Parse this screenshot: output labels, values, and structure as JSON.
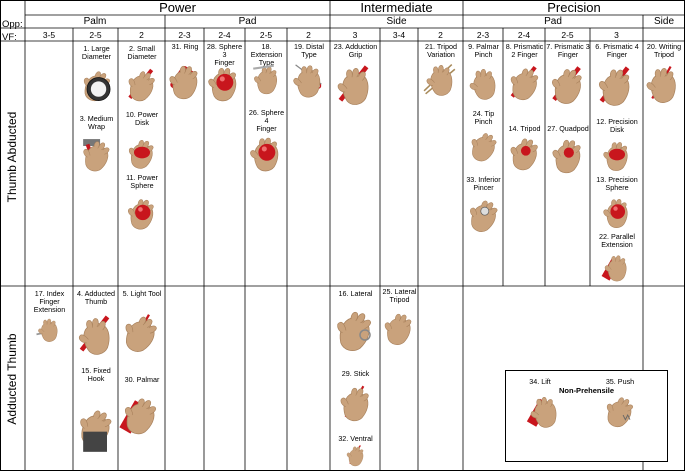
{
  "header": {
    "opp_label": "Opp:",
    "vf_label": "VF:",
    "groups": [
      "Power",
      "Intermediate",
      "Precision"
    ],
    "subgroups": [
      "Palm",
      "Pad",
      "Side",
      "Pad",
      "Side"
    ],
    "vf_values": [
      "3-5",
      "2-5",
      "2",
      "2-3",
      "2-4",
      "2-5",
      "2",
      "3",
      "3-4",
      "2",
      "2-3",
      "2-4",
      "2-5",
      "3"
    ]
  },
  "rows": {
    "thumb_abducted": "Thumb Abducted",
    "adducted_thumb": "Adducted Thumb"
  },
  "grasps": [
    {
      "label": "1. Large\nDiameter",
      "object": "cylinder-large"
    },
    {
      "label": "2. Small\nDiameter",
      "object": "rod"
    },
    {
      "label": "3. Medium\nWrap",
      "object": "hammer"
    },
    {
      "label": "10. Power\nDisk",
      "object": "disk"
    },
    {
      "label": "11. Power\nSphere",
      "object": "sphere"
    },
    {
      "label": "31. Ring",
      "object": "cylinder-red"
    },
    {
      "label": "28. Sphere 3\nFinger",
      "object": "sphere"
    },
    {
      "label": "18.\nExtension\nType",
      "object": "plate"
    },
    {
      "label": "26. Sphere 4\nFinger",
      "object": "sphere"
    },
    {
      "label": "19. Distal\nType",
      "object": "scissors"
    },
    {
      "label": "23. Adduction\nGrip",
      "object": "rod"
    },
    {
      "label": "21. Tripod\nVariation",
      "object": "chopsticks"
    },
    {
      "label": "9. Palmar\nPinch",
      "object": "none"
    },
    {
      "label": "24. Tip\nPinch",
      "object": "none"
    },
    {
      "label": "33. Inferior\nPincer",
      "object": "ball-small"
    },
    {
      "label": "8. Prismatic\n2 Finger",
      "object": "rod"
    },
    {
      "label": "14. Tripod",
      "object": "sphere-small"
    },
    {
      "label": "7. Prismatic 3\nFinger",
      "object": "rod"
    },
    {
      "label": "27. Quadpod",
      "object": "sphere-small"
    },
    {
      "label": "6. Prismatic 4\nFinger",
      "object": "rod"
    },
    {
      "label": "12. Precision\nDisk",
      "object": "disk"
    },
    {
      "label": "13. Precision\nSphere",
      "object": "sphere"
    },
    {
      "label": "22. Parallel\nExtension",
      "object": "book"
    },
    {
      "label": "20. Writing\nTripod",
      "object": "pen"
    },
    {
      "label": "17. Index\nFinger\nExtension",
      "object": "knife"
    },
    {
      "label": "4. Adducted\nThumb",
      "object": "rod"
    },
    {
      "label": "5. Light Tool",
      "object": "pen"
    },
    {
      "label": "15. Fixed\nHook",
      "object": "bag"
    },
    {
      "label": "30. Palmar",
      "object": "book"
    },
    {
      "label": "16. Lateral",
      "object": "key"
    },
    {
      "label": "25. Lateral\nTripod",
      "object": "none"
    },
    {
      "label": "29. Stick",
      "object": "pen"
    },
    {
      "label": "32. Ventral",
      "object": "pen"
    }
  ],
  "non_prehensile": {
    "title": "Non-Prehensile",
    "items": [
      {
        "label": "34. Lift",
        "object": "book"
      },
      {
        "label": "35. Push",
        "object": "spring"
      }
    ]
  },
  "colors": {
    "skin": "#c9a27c",
    "skin_shadow": "#a9825d",
    "object_red": "#c8161d",
    "grid_line": "#000000"
  }
}
